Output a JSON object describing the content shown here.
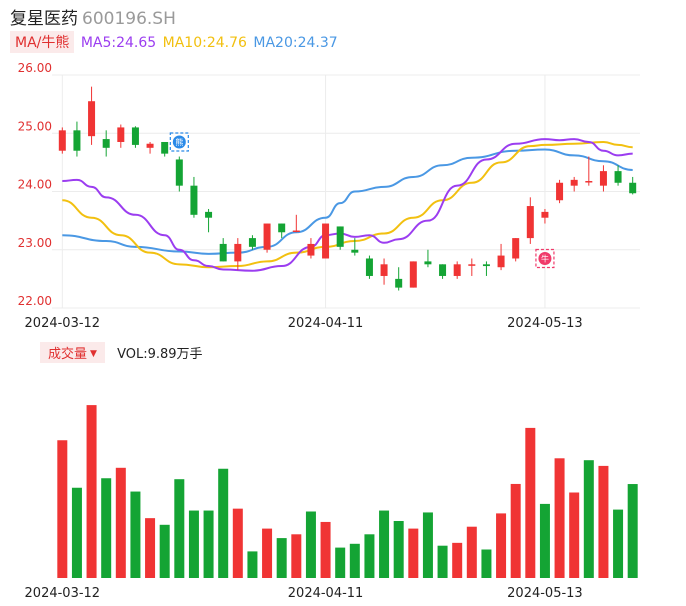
{
  "header": {
    "name": "复星医药",
    "code": "600196.SH"
  },
  "legend": {
    "chip": "MA/牛熊",
    "ma5": "MA5:24.65",
    "ma10": "MA10:24.76",
    "ma20": "MA20:24.37"
  },
  "volume_legend": {
    "chip": "成交量",
    "value": "VOL:9.89万手"
  },
  "colors": {
    "up": "#f03434",
    "down": "#14a434",
    "ma5": "#9b3df0",
    "ma10": "#f2c010",
    "ma20": "#4a98e4",
    "grid": "#ececec"
  },
  "chart_data": [
    {
      "type": "candlestick",
      "y_ticks": [
        "26.00",
        "25.00",
        "24.00",
        "23.00",
        "22.00"
      ],
      "ylim": [
        22.0,
        26.0
      ],
      "x_tick_labels": [
        {
          "label": "2024-03-12",
          "index": 0
        },
        {
          "label": "2024-04-11",
          "index": 18
        },
        {
          "label": "2024-05-13",
          "index": 33
        }
      ],
      "markers": [
        {
          "label": "熊",
          "index": 8,
          "price": 24.85,
          "color": "#2a8ae8"
        },
        {
          "label": "牛",
          "index": 33,
          "price": 22.85,
          "color": "#f03a6a"
        }
      ],
      "candles": [
        {
          "o": 24.7,
          "h": 25.1,
          "l": 24.65,
          "c": 25.05
        },
        {
          "o": 25.05,
          "h": 25.2,
          "l": 24.6,
          "c": 24.7
        },
        {
          "o": 24.95,
          "h": 25.8,
          "l": 24.8,
          "c": 25.55
        },
        {
          "o": 24.9,
          "h": 25.05,
          "l": 24.6,
          "c": 24.75
        },
        {
          "o": 24.85,
          "h": 25.15,
          "l": 24.75,
          "c": 25.1
        },
        {
          "o": 25.1,
          "h": 25.12,
          "l": 24.75,
          "c": 24.8
        },
        {
          "o": 24.75,
          "h": 24.85,
          "l": 24.65,
          "c": 24.82
        },
        {
          "o": 24.85,
          "h": 24.85,
          "l": 24.6,
          "c": 24.65
        },
        {
          "o": 24.55,
          "h": 24.6,
          "l": 24.0,
          "c": 24.1
        },
        {
          "o": 24.1,
          "h": 24.25,
          "l": 23.55,
          "c": 23.6
        },
        {
          "o": 23.65,
          "h": 23.7,
          "l": 23.3,
          "c": 23.55
        },
        {
          "o": 23.1,
          "h": 23.2,
          "l": 22.8,
          "c": 22.8
        },
        {
          "o": 22.8,
          "h": 23.2,
          "l": 22.65,
          "c": 23.1
        },
        {
          "o": 23.2,
          "h": 23.25,
          "l": 23.0,
          "c": 23.05
        },
        {
          "o": 23.0,
          "h": 23.45,
          "l": 22.95,
          "c": 23.45
        },
        {
          "o": 23.45,
          "h": 23.45,
          "l": 23.2,
          "c": 23.3
        },
        {
          "o": 23.33,
          "h": 23.6,
          "l": 23.3,
          "c": 23.33
        },
        {
          "o": 22.9,
          "h": 23.2,
          "l": 22.85,
          "c": 23.1
        },
        {
          "o": 22.85,
          "h": 23.45,
          "l": 22.85,
          "c": 23.45
        },
        {
          "o": 23.4,
          "h": 23.4,
          "l": 23.0,
          "c": 23.05
        },
        {
          "o": 23.0,
          "h": 23.2,
          "l": 22.9,
          "c": 22.95
        },
        {
          "o": 22.85,
          "h": 22.9,
          "l": 22.5,
          "c": 22.55
        },
        {
          "o": 22.55,
          "h": 22.85,
          "l": 22.4,
          "c": 22.75
        },
        {
          "o": 22.5,
          "h": 22.7,
          "l": 22.3,
          "c": 22.35
        },
        {
          "o": 22.35,
          "h": 22.8,
          "l": 22.35,
          "c": 22.8
        },
        {
          "o": 22.8,
          "h": 23.0,
          "l": 22.7,
          "c": 22.75
        },
        {
          "o": 22.75,
          "h": 22.75,
          "l": 22.5,
          "c": 22.55
        },
        {
          "o": 22.55,
          "h": 22.8,
          "l": 22.5,
          "c": 22.75
        },
        {
          "o": 22.75,
          "h": 22.85,
          "l": 22.55,
          "c": 22.75
        },
        {
          "o": 22.75,
          "h": 22.8,
          "l": 22.55,
          "c": 22.72
        },
        {
          "o": 22.7,
          "h": 23.1,
          "l": 22.65,
          "c": 22.9
        },
        {
          "o": 22.85,
          "h": 23.2,
          "l": 22.8,
          "c": 23.2
        },
        {
          "o": 23.2,
          "h": 23.9,
          "l": 23.1,
          "c": 23.75
        },
        {
          "o": 23.55,
          "h": 23.7,
          "l": 23.45,
          "c": 23.65
        },
        {
          "o": 23.85,
          "h": 24.2,
          "l": 23.8,
          "c": 24.15
        },
        {
          "o": 24.1,
          "h": 24.25,
          "l": 24.0,
          "c": 24.2
        },
        {
          "o": 24.18,
          "h": 24.6,
          "l": 24.1,
          "c": 24.18
        },
        {
          "o": 24.1,
          "h": 24.45,
          "l": 24.0,
          "c": 24.35
        },
        {
          "o": 24.35,
          "h": 24.45,
          "l": 24.1,
          "c": 24.15
        },
        {
          "o": 24.15,
          "h": 24.25,
          "l": 23.95,
          "c": 23.97
        }
      ],
      "ma5": [
        24.18,
        24.2,
        24.08,
        23.9,
        23.6,
        23.25,
        23.0,
        22.82,
        22.72,
        22.66,
        22.64,
        22.72,
        23.05,
        23.25,
        23.28,
        23.22,
        23.25,
        23.12,
        23.18,
        23.5,
        24.1,
        24.55,
        24.82,
        24.9,
        24.88,
        24.9,
        24.85,
        24.7,
        24.62,
        24.65
      ],
      "ma5_x": [
        0,
        1,
        2,
        3,
        5,
        7,
        8,
        9,
        10,
        11,
        13,
        15,
        17,
        18,
        19,
        20,
        21,
        22,
        23,
        25,
        27,
        29,
        31,
        33,
        34,
        35,
        36,
        37,
        38,
        39
      ],
      "ma10": [
        23.85,
        23.55,
        23.25,
        22.95,
        22.75,
        22.7,
        22.72,
        22.8,
        22.95,
        23.05,
        23.15,
        23.28,
        23.55,
        23.85,
        24.15,
        24.5,
        24.78,
        24.8,
        24.82,
        24.85,
        24.8,
        24.76
      ],
      "ma10_x": [
        0,
        2,
        4,
        6,
        8,
        10,
        12,
        14,
        16,
        18,
        20,
        22,
        24,
        26,
        28,
        30,
        32,
        33,
        35,
        37,
        38,
        39
      ],
      "ma20": [
        23.25,
        23.15,
        23.05,
        22.97,
        22.93,
        22.95,
        23.05,
        23.3,
        23.55,
        23.8,
        24.0,
        24.08,
        24.25,
        24.45,
        24.58,
        24.7,
        24.72,
        24.62,
        24.52,
        24.37
      ],
      "ma20_x": [
        0,
        3,
        5,
        8,
        10,
        12,
        14,
        16,
        18,
        19,
        20,
        22,
        24,
        26,
        28,
        31,
        33,
        35,
        37,
        39
      ]
    },
    {
      "type": "bar",
      "x_tick_labels": [
        {
          "label": "2024-03-12",
          "index": 0
        },
        {
          "label": "2024-04-11",
          "index": 18
        },
        {
          "label": "2024-05-13",
          "index": 33
        }
      ],
      "ylim": [
        0,
        20
      ],
      "values": [
        14.5,
        9.5,
        18.2,
        10.5,
        11.6,
        9.1,
        6.3,
        5.6,
        10.4,
        7.1,
        7.1,
        11.5,
        7.3,
        2.8,
        5.2,
        4.2,
        4.6,
        7.0,
        5.9,
        3.2,
        3.6,
        4.6,
        7.1,
        6.0,
        5.2,
        6.9,
        3.4,
        3.7,
        5.4,
        3.0,
        6.8,
        9.9,
        15.8,
        7.8,
        12.6,
        9.0,
        12.4,
        11.8,
        7.2,
        9.89
      ],
      "directions": [
        "up",
        "down",
        "up",
        "down",
        "up",
        "down",
        "up",
        "down",
        "down",
        "down",
        "down",
        "down",
        "up",
        "down",
        "up",
        "down",
        "up",
        "down",
        "up",
        "down",
        "down",
        "down",
        "down",
        "down",
        "up",
        "down",
        "down",
        "up",
        "up",
        "down",
        "up",
        "up",
        "up",
        "down",
        "up",
        "up",
        "down",
        "up",
        "down",
        "down"
      ]
    }
  ]
}
